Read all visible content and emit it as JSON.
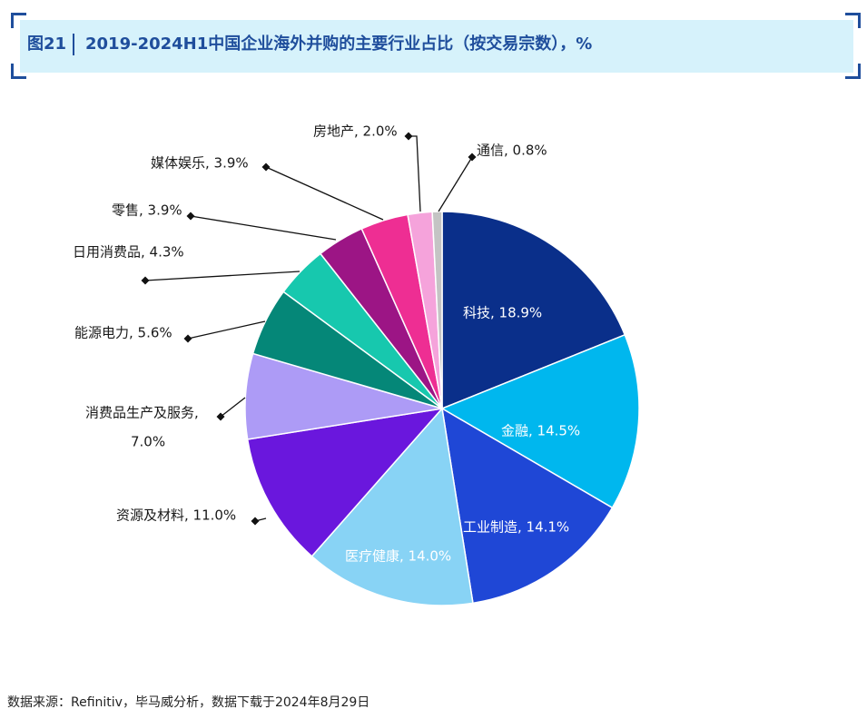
{
  "header": {
    "figure_number": "图21",
    "title": "2019-2024H1中国企业海外并购的主要行业占比（按交易宗数），%"
  },
  "footer": {
    "source": "数据来源：Refinitiv，毕马威分析，数据下载于2024年8月29日"
  },
  "colors": {
    "banner_bg": "#d6f2fb",
    "accent": "#1f4e9c"
  },
  "chart_data": {
    "type": "pie",
    "title": "2019-2024H1中国企业海外并购的主要行业占比（按交易宗数），%",
    "start_angle_deg": 0,
    "direction": "clockwise",
    "slices": [
      {
        "name": "科技",
        "value": 18.9,
        "label": "科技, 18.9%",
        "color": "#0a2f8a",
        "label_inside": true
      },
      {
        "name": "金融",
        "value": 14.5,
        "label": "金融, 14.5%",
        "color": "#00b7ee",
        "label_inside": true
      },
      {
        "name": "工业制造",
        "value": 14.1,
        "label": "工业制造, 14.1%",
        "color": "#1f47d6",
        "label_inside": true
      },
      {
        "name": "医疗健康",
        "value": 14.0,
        "label": "医疗健康, 14.0%",
        "color": "#88d3f5",
        "label_inside": true
      },
      {
        "name": "资源及材料",
        "value": 11.0,
        "label": "资源及材料, 11.0%",
        "color": "#6a17dd",
        "label_inside": false
      },
      {
        "name": "消费品生产及服务",
        "value": 7.0,
        "label": "消费品生产及服务,",
        "label2": "7.0%",
        "color": "#ad9bf6",
        "label_inside": false
      },
      {
        "name": "能源电力",
        "value": 5.6,
        "label": "能源电力, 5.6%",
        "color": "#058778",
        "label_inside": false
      },
      {
        "name": "日用消费品",
        "value": 4.3,
        "label": "日用消费品, 4.3%",
        "color": "#17c8ae",
        "label_inside": false
      },
      {
        "name": "零售",
        "value": 3.9,
        "label": "零售, 3.9%",
        "color": "#9c1585",
        "label_inside": false
      },
      {
        "name": "媒体娱乐",
        "value": 3.9,
        "label": "媒体娱乐, 3.9%",
        "color": "#ee2e93",
        "label_inside": false
      },
      {
        "name": "房地产",
        "value": 2.0,
        "label": "房地产, 2.0%",
        "color": "#f5a3db",
        "label_inside": false
      },
      {
        "name": "通信",
        "value": 0.8,
        "label": "通信, 0.8%",
        "color": "#c4c4c4",
        "label_inside": false
      }
    ]
  }
}
